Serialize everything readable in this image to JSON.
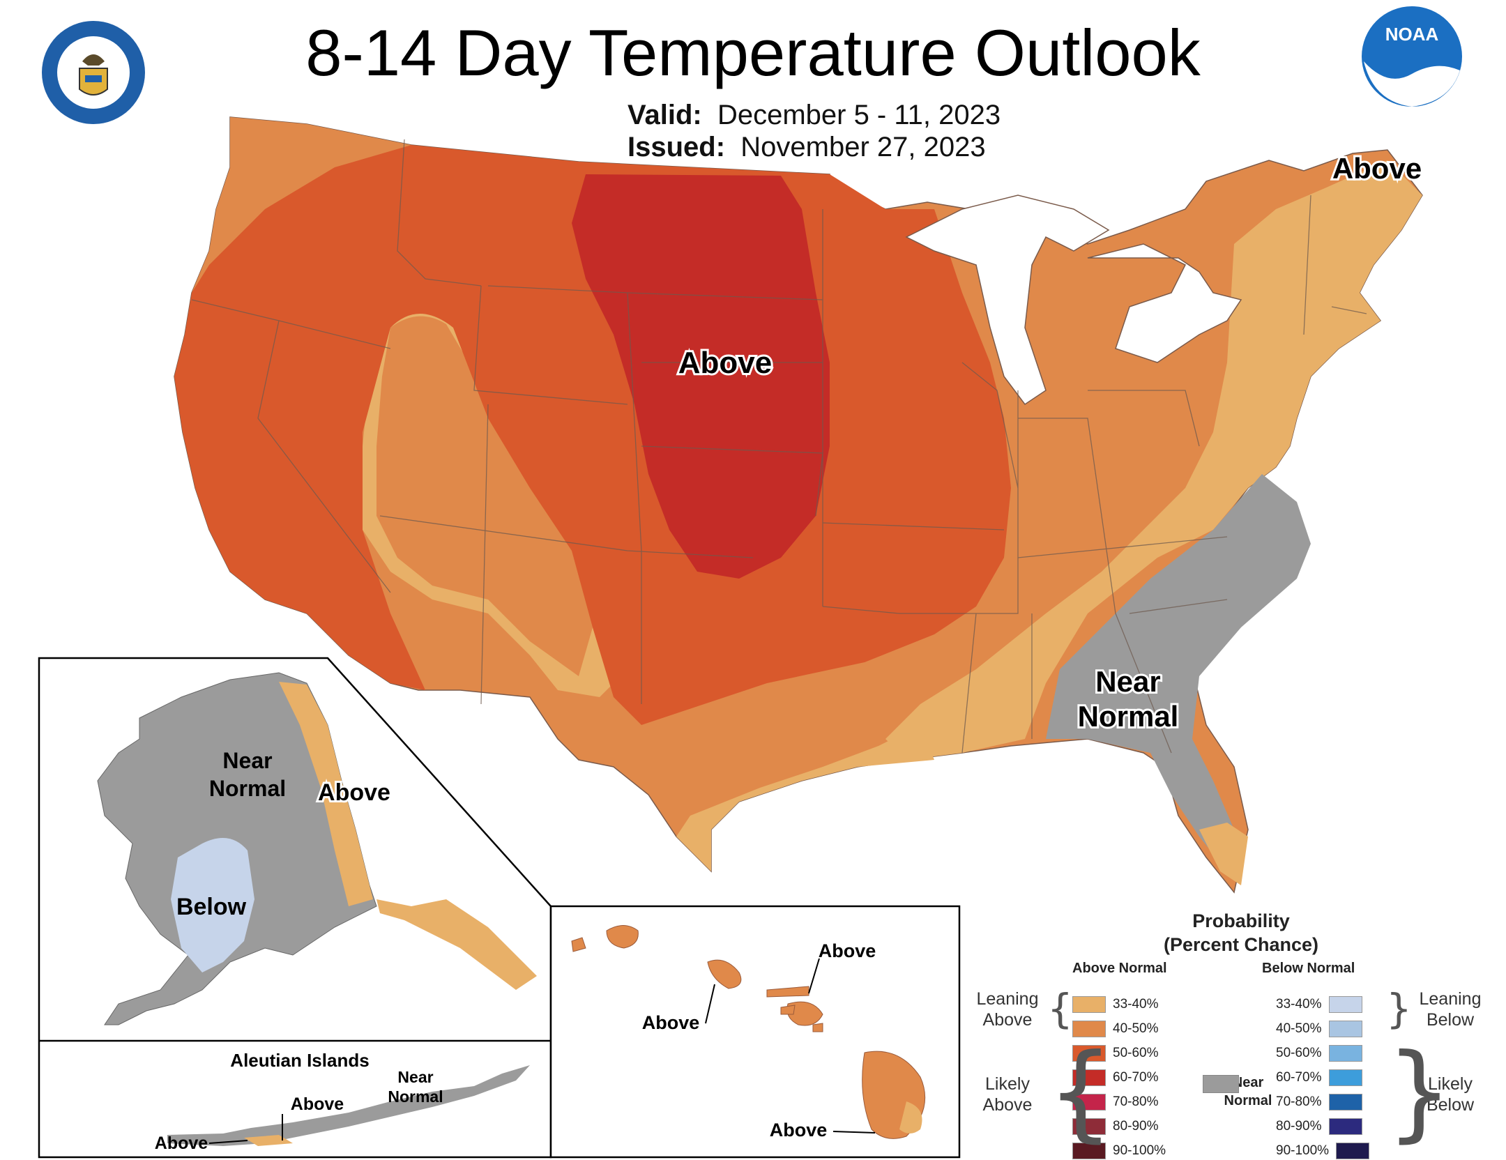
{
  "header": {
    "title": "8-14 Day Temperature Outlook",
    "valid_label": "Valid:",
    "valid_value": "December 5 - 11, 2023",
    "issued_label": "Issued:",
    "issued_value": "November 27, 2023"
  },
  "logos": {
    "left": "seal-commerce-icon",
    "right": "noaa-logo-icon",
    "noaa_text": "NOAA"
  },
  "map_labels": {
    "conus_center": "Above",
    "northeast": "Above",
    "southeast_line1": "Near",
    "southeast_line2": "Normal",
    "alaska_near_line1": "Near",
    "alaska_near_line2": "Normal",
    "alaska_above": "Above",
    "alaska_below": "Below",
    "aleutian_title": "Aleutian Islands",
    "aleutian_above1": "Above",
    "aleutian_above2": "Above",
    "aleutian_near_line1": "Near",
    "aleutian_near_line2": "Normal",
    "hawaii_above1": "Above",
    "hawaii_above2": "Above",
    "hawaii_above3": "Above"
  },
  "legend": {
    "title_line1": "Probability",
    "title_line2": "(Percent Chance)",
    "above_header": "Above Normal",
    "below_header": "Below Normal",
    "near_line1": "Near",
    "near_line2": "Normal",
    "leaning_above_1": "Leaning",
    "leaning_above_2": "Above",
    "likely_above_1": "Likely",
    "likely_above_2": "Above",
    "leaning_below_1": "Leaning",
    "leaning_below_2": "Below",
    "likely_below_1": "Likely",
    "likely_below_2": "Below",
    "above_bins": [
      {
        "label": "33-40%",
        "color": "#e8b068"
      },
      {
        "label": "40-50%",
        "color": "#e0894a"
      },
      {
        "label": "50-60%",
        "color": "#d9592c"
      },
      {
        "label": "60-70%",
        "color": "#c42c27"
      },
      {
        "label": "70-80%",
        "color": "#c4244a"
      },
      {
        "label": "80-90%",
        "color": "#8e2c38"
      },
      {
        "label": "90-100%",
        "color": "#5a1a22"
      }
    ],
    "below_bins": [
      {
        "label": "33-40%",
        "color": "#c6d4ea"
      },
      {
        "label": "40-50%",
        "color": "#a9c5e2"
      },
      {
        "label": "50-60%",
        "color": "#79b3e0"
      },
      {
        "label": "60-70%",
        "color": "#3d9ddb"
      },
      {
        "label": "70-80%",
        "color": "#1e62a8"
      },
      {
        "label": "80-90%",
        "color": "#2c2a7e"
      },
      {
        "label": "90-100%",
        "color": "#1e1a4e"
      }
    ],
    "near_normal_color": "#9b9b9b"
  }
}
